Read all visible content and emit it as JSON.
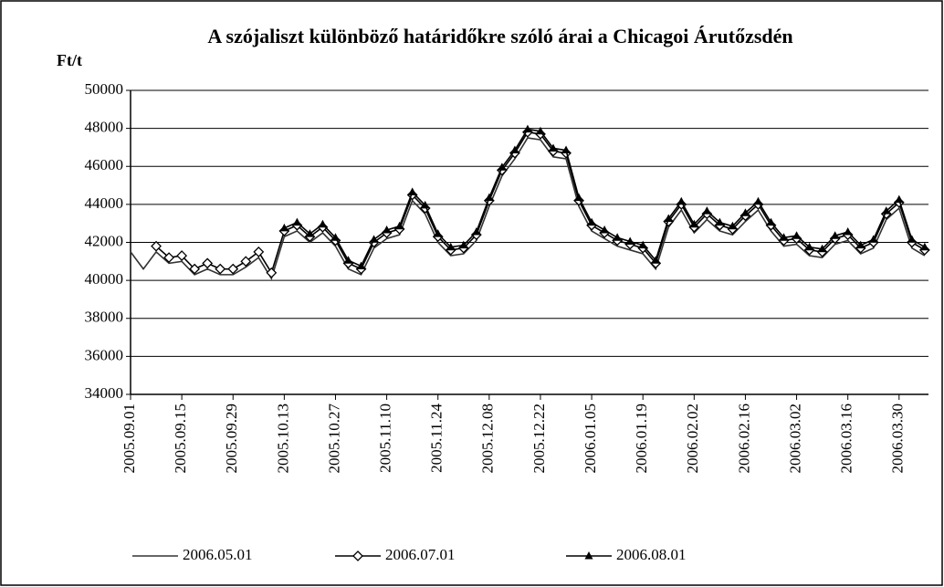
{
  "chart_data": {
    "type": "line",
    "title": "A szójaliszt különböző határidőkre szóló árai a Chicagoi Árutőzsdén",
    "y_label": "Ft/t",
    "categories": [
      "2005.09.01",
      null,
      null,
      null,
      "2005.09.15",
      null,
      null,
      null,
      "2005.09.29",
      null,
      null,
      null,
      "2005.10.13",
      null,
      null,
      null,
      "2005.10.27",
      null,
      null,
      null,
      "2005.11.10",
      null,
      null,
      null,
      "2005.11.24",
      null,
      null,
      null,
      "2005.12.08",
      null,
      null,
      null,
      "2005.12.22",
      null,
      null,
      null,
      "2006.01.05",
      null,
      null,
      null,
      "2006.01.19",
      null,
      null,
      null,
      "2006.02.02",
      null,
      null,
      null,
      "2006.02.16",
      null,
      null,
      null,
      "2006.03.02",
      null,
      null,
      null,
      "2006.03.16",
      null,
      null,
      null,
      "2006.03.30",
      null,
      null
    ],
    "ylim": [
      34000,
      50000
    ],
    "yticks": [
      34000,
      36000,
      38000,
      40000,
      42000,
      44000,
      46000,
      48000,
      50000
    ],
    "grid": true,
    "legend": "bottom",
    "series": [
      {
        "name": "2006.05.01",
        "color": "#333333",
        "marker": "none",
        "values": [
          41500,
          40600,
          41500,
          40900,
          41000,
          40300,
          40600,
          40300,
          40300,
          40700,
          41200,
          40100,
          42300,
          42600,
          42000,
          42500,
          41800,
          40600,
          40300,
          41700,
          42200,
          42400,
          44200,
          43500,
          42000,
          41300,
          41400,
          42100,
          43900,
          45500,
          46400,
          47500,
          47400,
          46500,
          46400,
          43900,
          42600,
          42200,
          41800,
          41600,
          41400,
          40600,
          42800,
          43700,
          42500,
          43200,
          42600,
          42400,
          43100,
          43700,
          42600,
          41800,
          41900,
          41300,
          41200,
          41900,
          42100,
          41400,
          41700,
          43200,
          43800,
          41700,
          41300
        ]
      },
      {
        "name": "2006.07.01",
        "color": "#000000",
        "marker": "diamond",
        "values": [
          null,
          null,
          41800,
          41200,
          41300,
          40600,
          40900,
          40600,
          40600,
          41000,
          41500,
          40400,
          42600,
          42900,
          42300,
          42800,
          42100,
          40900,
          40600,
          42000,
          42500,
          42700,
          44500,
          43800,
          42300,
          41600,
          41700,
          42400,
          44200,
          45800,
          46700,
          47800,
          47700,
          46800,
          46700,
          44200,
          42900,
          42500,
          42100,
          41900,
          41700,
          40900,
          43100,
          44000,
          42800,
          43500,
          42900,
          42700,
          43400,
          44000,
          42900,
          42100,
          42200,
          41600,
          41500,
          42200,
          42400,
          41700,
          42000,
          43500,
          44100,
          42000,
          41600
        ]
      },
      {
        "name": "2006.08.01",
        "color": "#000000",
        "marker": "triangle",
        "values": [
          null,
          null,
          null,
          null,
          null,
          null,
          null,
          null,
          null,
          null,
          null,
          null,
          42750,
          43050,
          42450,
          42950,
          42250,
          41050,
          40750,
          42150,
          42650,
          42850,
          44650,
          43950,
          42450,
          41750,
          41850,
          42550,
          44350,
          45950,
          46850,
          47950,
          47850,
          46950,
          46850,
          44350,
          43050,
          42650,
          42250,
          42050,
          41850,
          41050,
          43250,
          44150,
          42950,
          43650,
          43050,
          42850,
          43550,
          44150,
          43050,
          42250,
          42350,
          41750,
          41650,
          42350,
          42550,
          41850,
          42150,
          43650,
          44250,
          42150,
          41750
        ]
      }
    ]
  }
}
